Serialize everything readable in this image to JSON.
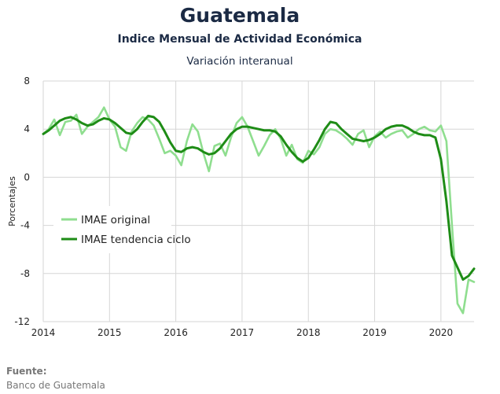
{
  "chart_data": {
    "type": "line",
    "title": "Guatemala",
    "subtitle": "Indice Mensual de  Actividad Económica",
    "subtitle2": "Variación interanual",
    "ylabel": "Porcentajes",
    "xlabel": "",
    "xlim": [
      2014.0,
      2020.5
    ],
    "ylim": [
      -12,
      8
    ],
    "yticks": [
      8,
      4,
      0,
      -4,
      -8,
      -12
    ],
    "xticks": [
      2014,
      2015,
      2016,
      2017,
      2018,
      2019,
      2020
    ],
    "grid": true,
    "legend_position": "left-center",
    "series": [
      {
        "name": "IMAE original",
        "color": "#8fde8f",
        "x": [
          2014.0,
          2014.083,
          2014.167,
          2014.25,
          2014.333,
          2014.417,
          2014.5,
          2014.583,
          2014.667,
          2014.75,
          2014.833,
          2014.917,
          2015.0,
          2015.083,
          2015.167,
          2015.25,
          2015.333,
          2015.417,
          2015.5,
          2015.583,
          2015.667,
          2015.75,
          2015.833,
          2015.917,
          2016.0,
          2016.083,
          2016.167,
          2016.25,
          2016.333,
          2016.417,
          2016.5,
          2016.583,
          2016.667,
          2016.75,
          2016.833,
          2016.917,
          2017.0,
          2017.083,
          2017.167,
          2017.25,
          2017.333,
          2017.417,
          2017.5,
          2017.583,
          2017.667,
          2017.75,
          2017.833,
          2017.917,
          2018.0,
          2018.083,
          2018.167,
          2018.25,
          2018.333,
          2018.417,
          2018.5,
          2018.583,
          2018.667,
          2018.75,
          2018.833,
          2018.917,
          2019.0,
          2019.083,
          2019.167,
          2019.25,
          2019.333,
          2019.417,
          2019.5,
          2019.583,
          2019.667,
          2019.75,
          2019.833,
          2019.917,
          2020.0,
          2020.083,
          2020.167,
          2020.25,
          2020.333,
          2020.417,
          2020.5
        ],
        "values": [
          3.6,
          4.0,
          4.8,
          3.5,
          4.6,
          4.7,
          5.2,
          3.6,
          4.2,
          4.6,
          5.0,
          5.8,
          4.8,
          4.2,
          2.5,
          2.2,
          3.8,
          4.5,
          5.0,
          4.8,
          4.3,
          3.2,
          2.0,
          2.2,
          1.8,
          1.0,
          3.0,
          4.4,
          3.8,
          2.0,
          0.5,
          2.6,
          2.8,
          1.8,
          3.3,
          4.5,
          5.0,
          4.2,
          3.0,
          1.8,
          2.6,
          3.5,
          4.0,
          3.2,
          1.8,
          2.7,
          1.5,
          1.2,
          2.2,
          1.9,
          2.5,
          3.6,
          4.0,
          3.9,
          3.6,
          3.2,
          2.7,
          3.6,
          3.9,
          2.5,
          3.4,
          3.8,
          3.3,
          3.6,
          3.8,
          3.9,
          3.3,
          3.6,
          4.0,
          4.2,
          3.9,
          3.8,
          4.3,
          3.0,
          -4.0,
          -10.5,
          -11.3,
          -8.5,
          -8.7
        ]
      },
      {
        "name": "IMAE tendencia ciclo",
        "color": "#1e8c16",
        "x": [
          2014.0,
          2014.083,
          2014.167,
          2014.25,
          2014.333,
          2014.417,
          2014.5,
          2014.583,
          2014.667,
          2014.75,
          2014.833,
          2014.917,
          2015.0,
          2015.083,
          2015.167,
          2015.25,
          2015.333,
          2015.417,
          2015.5,
          2015.583,
          2015.667,
          2015.75,
          2015.833,
          2015.917,
          2016.0,
          2016.083,
          2016.167,
          2016.25,
          2016.333,
          2016.417,
          2016.5,
          2016.583,
          2016.667,
          2016.75,
          2016.833,
          2016.917,
          2017.0,
          2017.083,
          2017.167,
          2017.25,
          2017.333,
          2017.417,
          2017.5,
          2017.583,
          2017.667,
          2017.75,
          2017.833,
          2017.917,
          2018.0,
          2018.083,
          2018.167,
          2018.25,
          2018.333,
          2018.417,
          2018.5,
          2018.583,
          2018.667,
          2018.75,
          2018.833,
          2018.917,
          2019.0,
          2019.083,
          2019.167,
          2019.25,
          2019.333,
          2019.417,
          2019.5,
          2019.583,
          2019.667,
          2019.75,
          2019.833,
          2019.917,
          2020.0,
          2020.083,
          2020.167,
          2020.25,
          2020.333,
          2020.417,
          2020.5
        ],
        "values": [
          3.6,
          3.9,
          4.3,
          4.7,
          4.9,
          5.0,
          4.8,
          4.5,
          4.3,
          4.4,
          4.7,
          4.9,
          4.8,
          4.5,
          4.1,
          3.7,
          3.6,
          4.0,
          4.6,
          5.1,
          5.0,
          4.6,
          3.8,
          2.9,
          2.2,
          2.1,
          2.4,
          2.5,
          2.4,
          2.1,
          1.9,
          2.0,
          2.4,
          3.0,
          3.6,
          4.0,
          4.2,
          4.2,
          4.1,
          4.0,
          3.9,
          3.9,
          3.8,
          3.4,
          2.7,
          2.1,
          1.6,
          1.3,
          1.6,
          2.3,
          3.1,
          4.0,
          4.6,
          4.5,
          4.0,
          3.6,
          3.2,
          3.1,
          3.0,
          3.1,
          3.3,
          3.6,
          4.0,
          4.2,
          4.3,
          4.3,
          4.1,
          3.8,
          3.6,
          3.5,
          3.5,
          3.3,
          1.5,
          -2.0,
          -6.5,
          -7.5,
          -8.5,
          -8.2,
          -7.6
        ]
      }
    ]
  },
  "source": {
    "label": "Fuente:",
    "value": "Banco de Guatemala"
  }
}
